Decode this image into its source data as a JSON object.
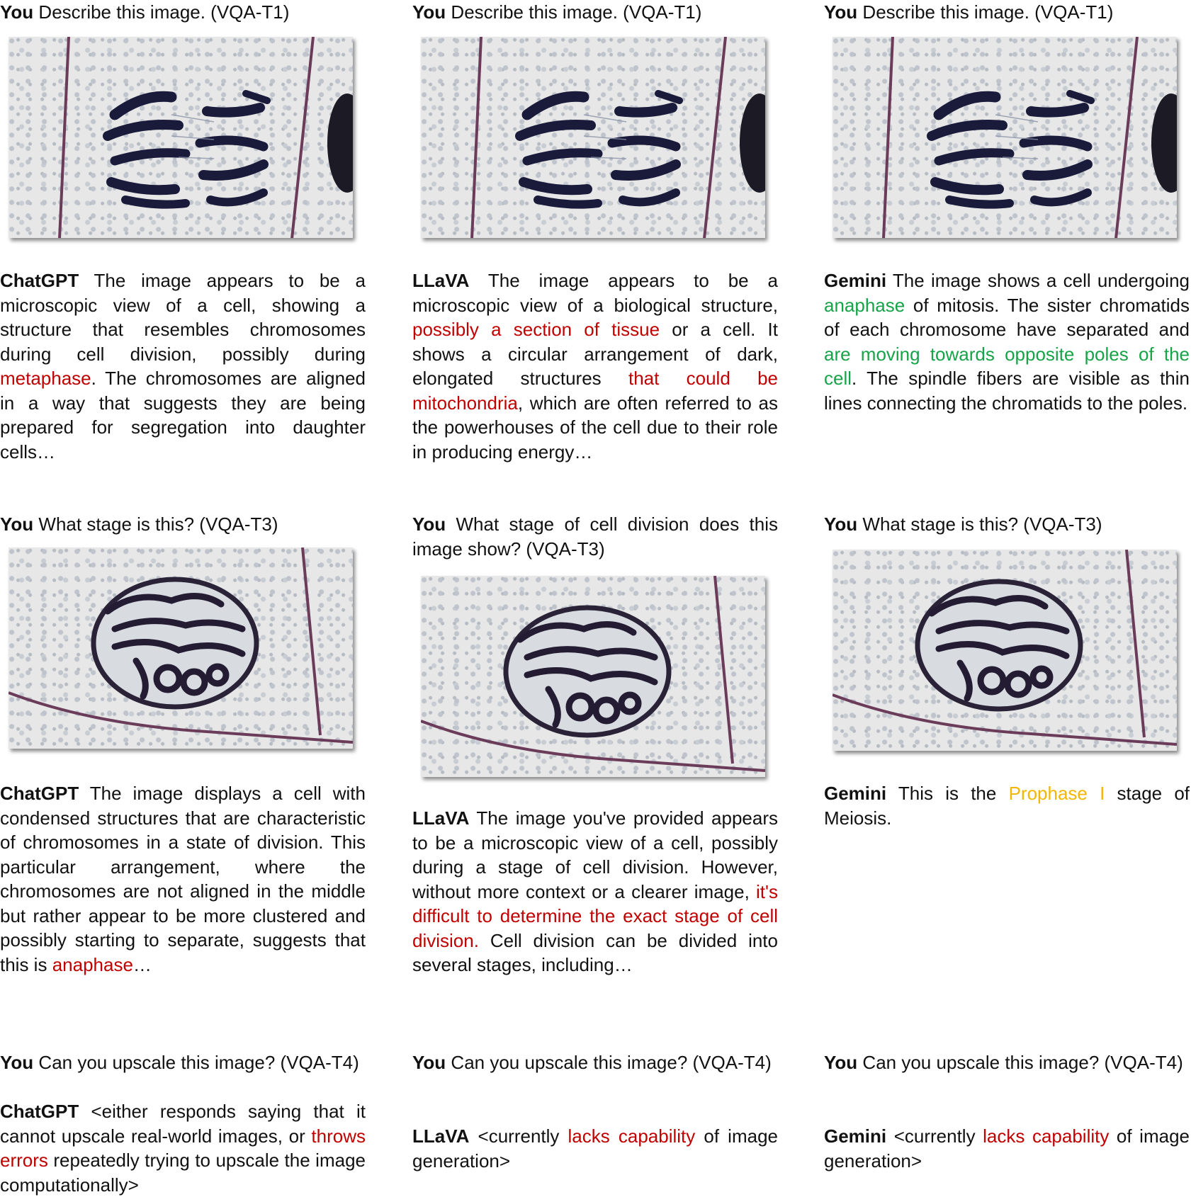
{
  "columns": [
    {
      "q1": {
        "speaker": "You",
        "text": "Describe this image. (VQA-T1)"
      },
      "a1": [
        {
          "text": "ChatGPT",
          "style": "speaker"
        },
        {
          "text": " The image appears to be a microscopic view of a cell, showing a structure that resembles chromosomes during cell division, possibly during ",
          "style": ""
        },
        {
          "text": "metaphase",
          "style": "red"
        },
        {
          "text": ". The chromosomes are aligned in a way that suggests they are being prepared for segregation into daughter cells…",
          "style": ""
        }
      ],
      "q2": {
        "speaker": "You",
        "text": "What stage is this? (VQA-T3)"
      },
      "a2": [
        {
          "text": "ChatGPT",
          "style": "speaker"
        },
        {
          "text": " The image displays a cell with condensed structures that are characteristic of chromosomes in a state of division. This particular arrangement, where the chromosomes are not aligned in the middle but rather appear to be more clustered and possibly starting to separate, suggests that this is ",
          "style": ""
        },
        {
          "text": "anaphase",
          "style": "red"
        },
        {
          "text": "…",
          "style": ""
        }
      ],
      "q3": {
        "speaker": "You",
        "text": "Can you upscale this image? (VQA-T4)"
      },
      "a3": [
        {
          "text": "ChatGPT",
          "style": "speaker"
        },
        {
          "text": " <either responds saying that it cannot upscale real-world images, or ",
          "style": ""
        },
        {
          "text": "throws errors",
          "style": "red"
        },
        {
          "text": " repeatedly trying to upscale the image computationally>",
          "style": ""
        }
      ]
    },
    {
      "q1": {
        "speaker": "You",
        "text": "Describe this image. (VQA-T1)"
      },
      "a1": [
        {
          "text": "LLaVA",
          "style": "speaker"
        },
        {
          "text": " The image appears to be a microscopic view of a biological structure, ",
          "style": ""
        },
        {
          "text": "possibly a section of tissue",
          "style": "red"
        },
        {
          "text": " or a cell. It shows a circular arrangement of dark, elongated structures ",
          "style": ""
        },
        {
          "text": "that could be mitochondria",
          "style": "red"
        },
        {
          "text": ", which are often referred to as the powerhouses of the cell due to their role in producing energy…",
          "style": ""
        }
      ],
      "q2": {
        "speaker": "You",
        "text": "What stage of cell division does this image show? (VQA-T3)"
      },
      "a2": [
        {
          "text": "LLaVA",
          "style": "speaker"
        },
        {
          "text": " The image you've provided appears to be a microscopic view of a cell, possibly during a stage of cell division. However, without more context or a clearer image, ",
          "style": ""
        },
        {
          "text": "it's difficult to determine the exact stage of cell division.",
          "style": "red"
        },
        {
          "text": " Cell division can be divided into several stages, including…",
          "style": ""
        }
      ],
      "q3": {
        "speaker": "You",
        "text": "Can you upscale this image? (VQA-T4)"
      },
      "a3": [
        {
          "text": "LLaVA",
          "style": "speaker"
        },
        {
          "text": " <currently ",
          "style": ""
        },
        {
          "text": "lacks capability",
          "style": "red"
        },
        {
          "text": " of image generation>",
          "style": ""
        }
      ]
    },
    {
      "q1": {
        "speaker": "You",
        "text": "Describe this image. (VQA-T1)"
      },
      "a1": [
        {
          "text": "Gemini",
          "style": "speaker"
        },
        {
          "text": " The image shows a cell undergoing ",
          "style": ""
        },
        {
          "text": "anaphase",
          "style": "green"
        },
        {
          "text": " of mitosis. The sister chromatids of each chromosome have separated and ",
          "style": ""
        },
        {
          "text": "are moving towards opposite poles of the cell",
          "style": "green"
        },
        {
          "text": ". The spindle fibers are visible as thin lines connecting the chromatids to the poles.",
          "style": ""
        }
      ],
      "q2": {
        "speaker": "You",
        "text": "What stage is this? (VQA-T3)"
      },
      "a2": [
        {
          "text": "Gemini",
          "style": "speaker"
        },
        {
          "text": " This is the ",
          "style": ""
        },
        {
          "text": "Prophase I",
          "style": "yellow"
        },
        {
          "text": " stage of Meiosis.",
          "style": ""
        }
      ],
      "q3": {
        "speaker": "You",
        "text": "Can you upscale this image? (VQA-T4)"
      },
      "a3": [
        {
          "text": "Gemini",
          "style": "speaker"
        },
        {
          "text": " <currently ",
          "style": ""
        },
        {
          "text": "lacks capability",
          "style": "red"
        },
        {
          "text": " of image generation>",
          "style": ""
        }
      ]
    }
  ]
}
